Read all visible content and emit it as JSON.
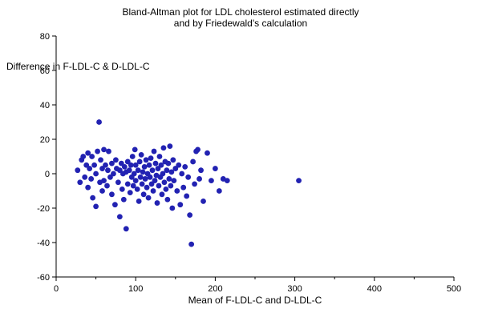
{
  "chart": {
    "title_line1": "Bland-Altman plot for LDL cholesterol estimated directly",
    "title_line2": "and by Friedewald's calculation",
    "y_annotation": "Difference in F-LDL-C &  D-LDL-C",
    "xlabel": "Mean of F-LDL-C and  D-LDL-C"
  },
  "chart_data": {
    "type": "scatter",
    "title": "Bland-Altman plot for LDL cholesterol estimated directly and by Friedewald's calculation",
    "xlabel": "Mean of F-LDL-C and  D-LDL-C",
    "ylabel": "Difference in F-LDL-C & D-LDL-C",
    "xlim": [
      0,
      500
    ],
    "ylim": [
      -60,
      80
    ],
    "x_major_ticks": [
      0,
      100,
      200,
      300,
      400,
      500
    ],
    "x_minor_ticks": [
      50,
      150,
      250,
      350,
      450
    ],
    "y_ticks": [
      -60,
      -40,
      -20,
      0,
      20,
      40,
      60,
      80
    ],
    "grid": false,
    "legend": "none",
    "marker_color": "#2222b2",
    "points": [
      [
        27,
        2
      ],
      [
        30,
        -5
      ],
      [
        32,
        8
      ],
      [
        34,
        10
      ],
      [
        36,
        -2
      ],
      [
        38,
        5
      ],
      [
        40,
        -8
      ],
      [
        40,
        12
      ],
      [
        42,
        3
      ],
      [
        44,
        -3
      ],
      [
        45,
        10
      ],
      [
        46,
        -14
      ],
      [
        48,
        5
      ],
      [
        50,
        -19
      ],
      [
        50,
        0
      ],
      [
        52,
        13
      ],
      [
        54,
        30
      ],
      [
        55,
        -5
      ],
      [
        56,
        8
      ],
      [
        58,
        -10
      ],
      [
        58,
        3
      ],
      [
        60,
        14
      ],
      [
        60,
        -4
      ],
      [
        62,
        5
      ],
      [
        64,
        -7
      ],
      [
        65,
        2
      ],
      [
        66,
        13
      ],
      [
        68,
        -2
      ],
      [
        70,
        6
      ],
      [
        70,
        -12
      ],
      [
        72,
        0
      ],
      [
        74,
        -18
      ],
      [
        75,
        8
      ],
      [
        76,
        3
      ],
      [
        78,
        -5
      ],
      [
        80,
        -25
      ],
      [
        80,
        2
      ],
      [
        82,
        6
      ],
      [
        83,
        -9
      ],
      [
        84,
        0
      ],
      [
        85,
        -15
      ],
      [
        86,
        4
      ],
      [
        88,
        -32
      ],
      [
        88,
        1
      ],
      [
        90,
        7
      ],
      [
        90,
        -6
      ],
      [
        92,
        2
      ],
      [
        93,
        -11
      ],
      [
        94,
        5
      ],
      [
        95,
        -2
      ],
      [
        96,
        10
      ],
      [
        97,
        -7
      ],
      [
        98,
        0
      ],
      [
        99,
        14
      ],
      [
        100,
        -4
      ],
      [
        100,
        5
      ],
      [
        102,
        -9
      ],
      [
        103,
        2
      ],
      [
        104,
        -16
      ],
      [
        105,
        7
      ],
      [
        106,
        -2
      ],
      [
        107,
        11
      ],
      [
        108,
        -6
      ],
      [
        109,
        1
      ],
      [
        110,
        -12
      ],
      [
        111,
        4
      ],
      [
        112,
        -3
      ],
      [
        113,
        8
      ],
      [
        114,
        -8
      ],
      [
        115,
        0
      ],
      [
        116,
        -14
      ],
      [
        117,
        5
      ],
      [
        118,
        -2
      ],
      [
        119,
        9
      ],
      [
        120,
        -6
      ],
      [
        121,
        2
      ],
      [
        122,
        -10
      ],
      [
        123,
        13
      ],
      [
        124,
        -4
      ],
      [
        125,
        6
      ],
      [
        126,
        -1
      ],
      [
        127,
        -17
      ],
      [
        128,
        3
      ],
      [
        129,
        -7
      ],
      [
        130,
        10
      ],
      [
        131,
        -2
      ],
      [
        132,
        5
      ],
      [
        133,
        -12
      ],
      [
        134,
        0
      ],
      [
        135,
        15
      ],
      [
        136,
        -5
      ],
      [
        137,
        7
      ],
      [
        138,
        -9
      ],
      [
        139,
        2
      ],
      [
        140,
        -15
      ],
      [
        141,
        6
      ],
      [
        142,
        -3
      ],
      [
        143,
        16
      ],
      [
        144,
        -7
      ],
      [
        145,
        1
      ],
      [
        146,
        -20
      ],
      [
        147,
        8
      ],
      [
        148,
        -4
      ],
      [
        150,
        3
      ],
      [
        152,
        -10
      ],
      [
        154,
        5
      ],
      [
        156,
        -18
      ],
      [
        158,
        0
      ],
      [
        160,
        -8
      ],
      [
        162,
        4
      ],
      [
        164,
        -13
      ],
      [
        166,
        -2
      ],
      [
        168,
        -24
      ],
      [
        170,
        -41
      ],
      [
        172,
        7
      ],
      [
        174,
        -6
      ],
      [
        176,
        13
      ],
      [
        178,
        14
      ],
      [
        180,
        -3
      ],
      [
        182,
        2
      ],
      [
        185,
        -16
      ],
      [
        190,
        12
      ],
      [
        195,
        -4
      ],
      [
        200,
        3
      ],
      [
        205,
        -10
      ],
      [
        210,
        -3
      ],
      [
        215,
        -4
      ],
      [
        305,
        -4
      ]
    ]
  }
}
